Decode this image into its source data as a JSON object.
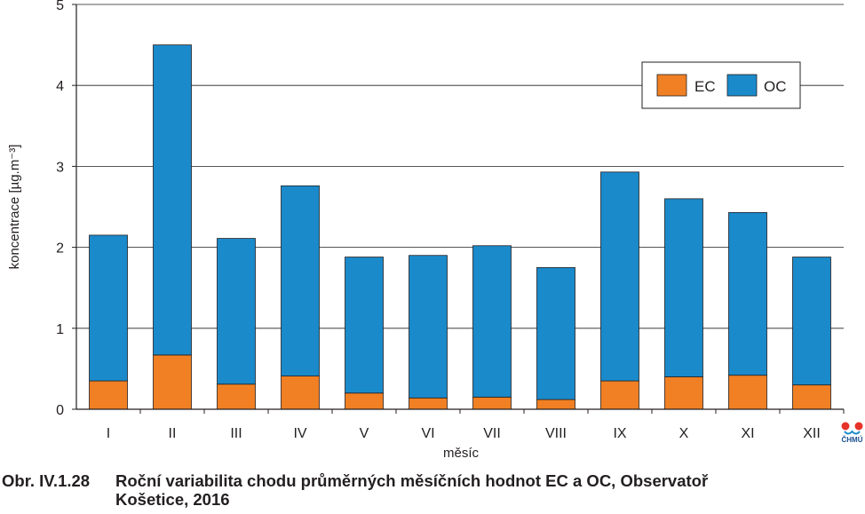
{
  "chart_data": {
    "type": "bar",
    "stacked": true,
    "categories": [
      "I",
      "II",
      "III",
      "IV",
      "V",
      "VI",
      "VII",
      "VIII",
      "IX",
      "X",
      "XI",
      "XII"
    ],
    "series": [
      {
        "name": "EC",
        "color": "#f08023",
        "values": [
          0.35,
          0.67,
          0.31,
          0.41,
          0.2,
          0.14,
          0.15,
          0.12,
          0.35,
          0.4,
          0.42,
          0.3
        ]
      },
      {
        "name": "OC",
        "color": "#1a8acb",
        "values": [
          1.8,
          3.83,
          1.8,
          2.35,
          1.68,
          1.76,
          1.87,
          1.63,
          2.58,
          2.2,
          2.01,
          1.58
        ]
      }
    ],
    "xlabel": "měsíc",
    "ylabel": "koncentrace [µg.m⁻³]",
    "ylim": [
      0,
      5
    ],
    "yticks": [
      "0",
      "1",
      "2",
      "3",
      "4",
      "5"
    ],
    "grid": true,
    "legend_position": "top-right"
  },
  "logo": {
    "text": "ČHMÚ"
  },
  "caption": {
    "number": "Obr. IV.1.28",
    "line1": "Roční variabilita chodu průměrných měsíčních hodnot EC a OC, Observatoř",
    "line2": "Košetice, 2016"
  }
}
